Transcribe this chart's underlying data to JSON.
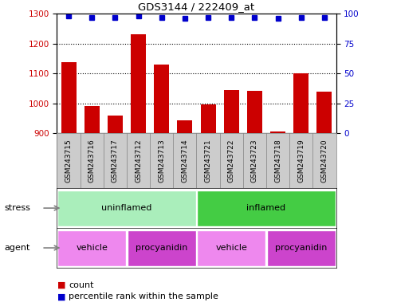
{
  "title": "GDS3144 / 222409_at",
  "samples": [
    "GSM243715",
    "GSM243716",
    "GSM243717",
    "GSM243712",
    "GSM243713",
    "GSM243714",
    "GSM243721",
    "GSM243722",
    "GSM243723",
    "GSM243718",
    "GSM243719",
    "GSM243720"
  ],
  "counts": [
    1138,
    992,
    960,
    1232,
    1130,
    942,
    997,
    1045,
    1042,
    906,
    1100,
    1040
  ],
  "percentile_ranks": [
    98,
    97,
    97,
    98,
    97,
    96,
    97,
    97,
    97,
    96,
    97,
    97
  ],
  "bar_color": "#cc0000",
  "dot_color": "#0000cc",
  "ylim_left": [
    900,
    1300
  ],
  "ylim_right": [
    0,
    100
  ],
  "yticks_left": [
    900,
    1000,
    1100,
    1200,
    1300
  ],
  "yticks_right": [
    0,
    25,
    50,
    75,
    100
  ],
  "stress_labels": [
    {
      "text": "uninflamed",
      "start": 0,
      "end": 6,
      "color": "#aaeebb"
    },
    {
      "text": "inflamed",
      "start": 6,
      "end": 12,
      "color": "#44cc44"
    }
  ],
  "agent_labels": [
    {
      "text": "vehicle",
      "start": 0,
      "end": 3,
      "color": "#ee88ee"
    },
    {
      "text": "procyanidin",
      "start": 3,
      "end": 6,
      "color": "#cc44cc"
    },
    {
      "text": "vehicle",
      "start": 6,
      "end": 9,
      "color": "#ee88ee"
    },
    {
      "text": "procyanidin",
      "start": 9,
      "end": 12,
      "color": "#cc44cc"
    }
  ],
  "legend_count_color": "#cc0000",
  "legend_dot_color": "#0000cc",
  "label_stress": "stress",
  "label_agent": "agent",
  "names_bg_color": "#cccccc",
  "grid_lines": [
    1000,
    1100,
    1200
  ]
}
